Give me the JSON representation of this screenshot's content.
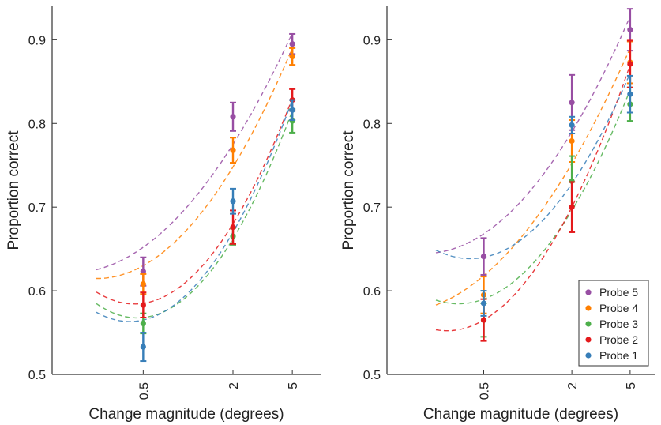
{
  "chart_data": [
    {
      "type": "scatter",
      "xlabel": "Change magnitude (degrees)",
      "ylabel": "Proportion correct",
      "x_scale": "log",
      "x_ticks": [
        "0.5",
        "2",
        "5"
      ],
      "y_ticks": [
        "0.5",
        "0.6",
        "0.7",
        "0.8",
        "0.9"
      ],
      "ylim": [
        0.5,
        0.94
      ],
      "legend": null,
      "series": [
        {
          "name": "Probe 5",
          "color": "#984ea3",
          "x": [
            0.5,
            2,
            5
          ],
          "y": [
            0.623,
            0.808,
            0.895
          ],
          "err": [
            0.017,
            0.017,
            0.012
          ],
          "fit": [
            0.652,
            0.775,
            0.908
          ]
        },
        {
          "name": "Probe 4",
          "color": "#ff7f00",
          "x": [
            0.5,
            2,
            5
          ],
          "y": [
            0.608,
            0.768,
            0.88
          ],
          "err": [
            0.012,
            0.015,
            0.01
          ],
          "fit": [
            0.63,
            0.748,
            0.89
          ]
        },
        {
          "name": "Probe 3",
          "color": "#4daf4a",
          "x": [
            0.5,
            2,
            5
          ],
          "y": [
            0.561,
            0.665,
            0.803
          ],
          "err": [
            0.012,
            0.01,
            0.014
          ],
          "fit": [
            0.568,
            0.662,
            0.815
          ]
        },
        {
          "name": "Probe 2",
          "color": "#e41a1c",
          "x": [
            0.5,
            2,
            5
          ],
          "y": [
            0.583,
            0.676,
            0.828
          ],
          "err": [
            0.015,
            0.02,
            0.013
          ],
          "fit": [
            0.585,
            0.68,
            0.83
          ]
        },
        {
          "name": "Probe 1",
          "color": "#377eb8",
          "x": [
            0.5,
            2,
            5
          ],
          "y": [
            0.533,
            0.707,
            0.816
          ],
          "err": [
            0.017,
            0.015,
            0.012
          ],
          "fit": [
            0.565,
            0.67,
            0.828
          ]
        }
      ]
    },
    {
      "type": "scatter",
      "xlabel": "Change magnitude (degrees)",
      "ylabel": "Proportion correct",
      "x_scale": "log",
      "x_ticks": [
        "0.5",
        "2",
        "5"
      ],
      "y_ticks": [
        "0.5",
        "0.6",
        "0.7",
        "0.8",
        "0.9"
      ],
      "ylim": [
        0.5,
        0.94
      ],
      "legend": "bottom-right",
      "series": [
        {
          "name": "Probe 5",
          "color": "#984ea3",
          "x": [
            0.5,
            2,
            5
          ],
          "y": [
            0.641,
            0.825,
            0.912
          ],
          "err": [
            0.022,
            0.033,
            0.025
          ],
          "fit": [
            0.668,
            0.79,
            0.928
          ]
        },
        {
          "name": "Probe 4",
          "color": "#ff7f00",
          "x": [
            0.5,
            2,
            5
          ],
          "y": [
            0.595,
            0.779,
            0.873
          ],
          "err": [
            0.022,
            0.025,
            0.025
          ],
          "fit": [
            0.618,
            0.752,
            0.89
          ]
        },
        {
          "name": "Probe 3",
          "color": "#4daf4a",
          "x": [
            0.5,
            2,
            5
          ],
          "y": [
            0.565,
            0.731,
            0.823
          ],
          "err": [
            0.02,
            0.03,
            0.02
          ],
          "fit": [
            0.59,
            0.696,
            0.84
          ]
        },
        {
          "name": "Probe 2",
          "color": "#e41a1c",
          "x": [
            0.5,
            2,
            5
          ],
          "y": [
            0.565,
            0.7,
            0.871
          ],
          "err": [
            0.025,
            0.03,
            0.028
          ],
          "fit": [
            0.565,
            0.7,
            0.87
          ]
        },
        {
          "name": "Probe 1",
          "color": "#377eb8",
          "x": [
            0.5,
            2,
            5
          ],
          "y": [
            0.585,
            0.798,
            0.835
          ],
          "err": [
            0.015,
            0.01,
            0.022
          ],
          "fit": [
            0.64,
            0.728,
            0.86
          ]
        }
      ]
    }
  ]
}
